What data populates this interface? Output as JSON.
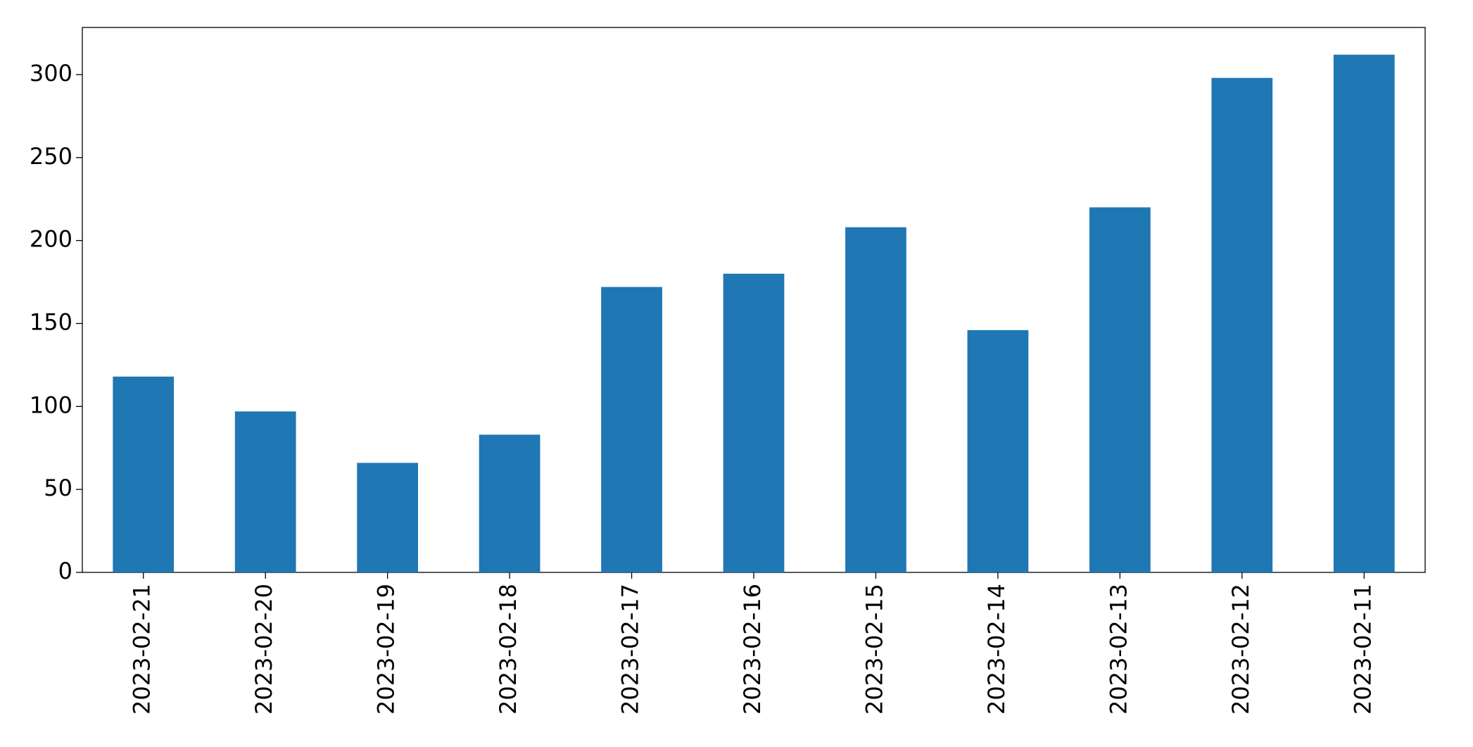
{
  "chart_data": {
    "type": "bar",
    "categories": [
      "2023-02-21",
      "2023-02-20",
      "2023-02-19",
      "2023-02-18",
      "2023-02-17",
      "2023-02-16",
      "2023-02-15",
      "2023-02-14",
      "2023-02-13",
      "2023-02-12",
      "2023-02-11"
    ],
    "values": [
      118,
      97,
      66,
      83,
      172,
      180,
      208,
      146,
      220,
      298,
      312
    ],
    "color": "#1f77b4",
    "ylim": [
      0,
      328.4
    ],
    "yticks": [
      0,
      50,
      100,
      150,
      200,
      250,
      300
    ],
    "grid": false
  }
}
